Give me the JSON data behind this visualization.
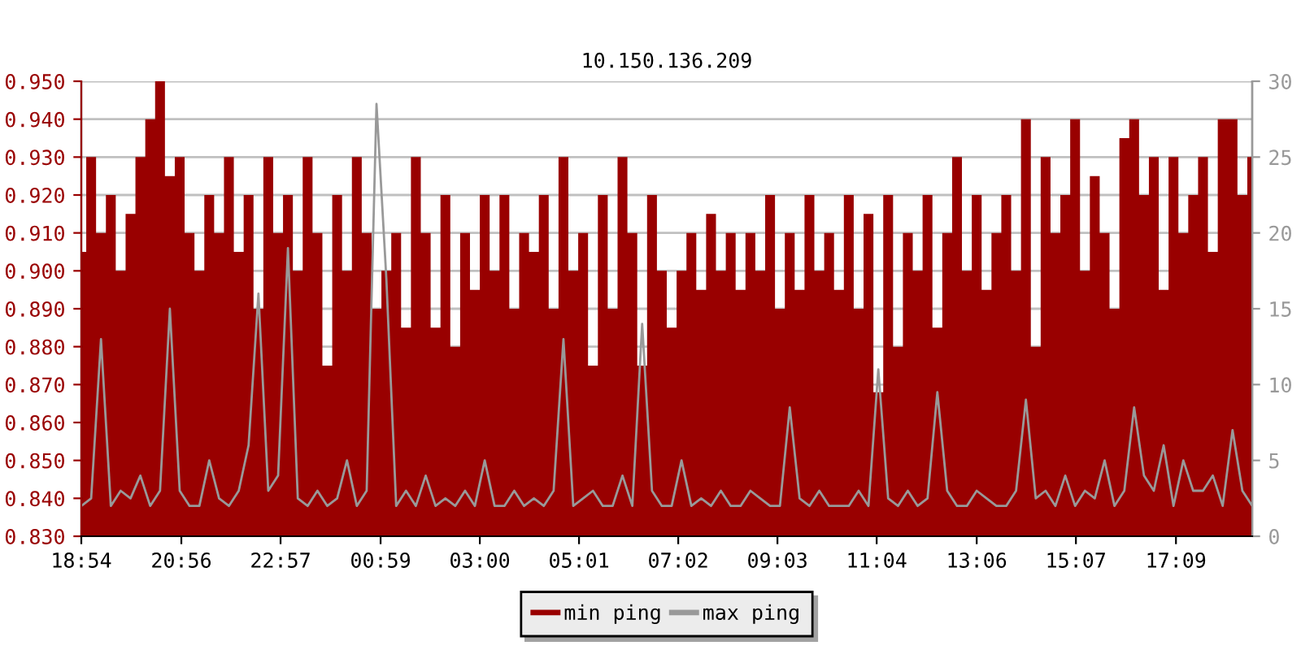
{
  "chart_data": {
    "type": "area",
    "title": "10.150.136.209",
    "xlim": [
      "2000-01-01T18:54",
      "2000-01-02T18:42"
    ],
    "xticks": [
      {
        "value": "2000-01-01T18:54",
        "label": "18:54"
      },
      {
        "value": "2000-01-01T20:56",
        "label": "20:56"
      },
      {
        "value": "2000-01-01T22:57",
        "label": "22:57"
      },
      {
        "value": "2000-01-02T00:59",
        "label": "00:59"
      },
      {
        "value": "2000-01-02T03:00",
        "label": "03:00"
      },
      {
        "value": "2000-01-02T05:01",
        "label": "05:01"
      },
      {
        "value": "2000-01-02T07:02",
        "label": "07:02"
      },
      {
        "value": "2000-01-02T09:03",
        "label": "09:03"
      },
      {
        "value": "2000-01-02T11:04",
        "label": "11:04"
      },
      {
        "value": "2000-01-02T13:06",
        "label": "13:06"
      },
      {
        "value": "2000-01-02T15:07",
        "label": "15:07"
      },
      {
        "value": "2000-01-02T17:09",
        "label": "17:09"
      }
    ],
    "ylim": [
      0.83,
      0.95
    ],
    "yticks": [
      {
        "value": 0.83,
        "label": "0.830"
      },
      {
        "value": 0.84,
        "label": "0.840"
      },
      {
        "value": 0.85,
        "label": "0.850"
      },
      {
        "value": 0.86,
        "label": "0.860"
      },
      {
        "value": 0.87,
        "label": "0.870"
      },
      {
        "value": 0.88,
        "label": "0.880"
      },
      {
        "value": 0.89,
        "label": "0.890"
      },
      {
        "value": 0.9,
        "label": "0.900"
      },
      {
        "value": 0.91,
        "label": "0.910"
      },
      {
        "value": 0.92,
        "label": "0.920"
      },
      {
        "value": 0.93,
        "label": "0.930"
      },
      {
        "value": 0.94,
        "label": "0.940"
      },
      {
        "value": 0.95,
        "label": "0.950"
      }
    ],
    "y2lim": [
      0,
      30
    ],
    "y2ticks": [
      0,
      5,
      10,
      15,
      20,
      25,
      30
    ],
    "grid": "y",
    "legend": "bottom",
    "x": [
      "2000-01-01T18:54",
      "2000-01-01T19:06",
      "2000-01-01T19:18",
      "2000-01-01T19:30",
      "2000-01-01T19:42",
      "2000-01-01T19:54",
      "2000-01-01T20:06",
      "2000-01-01T20:18",
      "2000-01-01T20:30",
      "2000-01-01T20:42",
      "2000-01-01T20:54",
      "2000-01-01T21:06",
      "2000-01-01T21:18",
      "2000-01-01T21:30",
      "2000-01-01T21:42",
      "2000-01-01T21:54",
      "2000-01-01T22:06",
      "2000-01-01T22:18",
      "2000-01-01T22:30",
      "2000-01-01T22:42",
      "2000-01-01T22:54",
      "2000-01-01T23:06",
      "2000-01-01T23:18",
      "2000-01-01T23:30",
      "2000-01-01T23:42",
      "2000-01-01T23:54",
      "2000-01-02T00:06",
      "2000-01-02T00:18",
      "2000-01-02T00:30",
      "2000-01-02T00:42",
      "2000-01-02T00:54",
      "2000-01-02T01:06",
      "2000-01-02T01:18",
      "2000-01-02T01:30",
      "2000-01-02T01:42",
      "2000-01-02T01:54",
      "2000-01-02T02:06",
      "2000-01-02T02:18",
      "2000-01-02T02:30",
      "2000-01-02T02:42",
      "2000-01-02T02:54",
      "2000-01-02T03:06",
      "2000-01-02T03:18",
      "2000-01-02T03:30",
      "2000-01-02T03:42",
      "2000-01-02T03:54",
      "2000-01-02T04:06",
      "2000-01-02T04:18",
      "2000-01-02T04:30",
      "2000-01-02T04:42",
      "2000-01-02T04:54",
      "2000-01-02T05:06",
      "2000-01-02T05:18",
      "2000-01-02T05:30",
      "2000-01-02T05:42",
      "2000-01-02T05:54",
      "2000-01-02T06:06",
      "2000-01-02T06:18",
      "2000-01-02T06:30",
      "2000-01-02T06:42",
      "2000-01-02T06:54",
      "2000-01-02T07:06",
      "2000-01-02T07:18",
      "2000-01-02T07:30",
      "2000-01-02T07:42",
      "2000-01-02T07:54",
      "2000-01-02T08:06",
      "2000-01-02T08:18",
      "2000-01-02T08:30",
      "2000-01-02T08:42",
      "2000-01-02T08:54",
      "2000-01-02T09:06",
      "2000-01-02T09:18",
      "2000-01-02T09:30",
      "2000-01-02T09:42",
      "2000-01-02T09:54",
      "2000-01-02T10:06",
      "2000-01-02T10:18",
      "2000-01-02T10:30",
      "2000-01-02T10:42",
      "2000-01-02T10:54",
      "2000-01-02T11:06",
      "2000-01-02T11:18",
      "2000-01-02T11:30",
      "2000-01-02T11:42",
      "2000-01-02T11:54",
      "2000-01-02T12:06",
      "2000-01-02T12:18",
      "2000-01-02T12:30",
      "2000-01-02T12:42",
      "2000-01-02T12:54",
      "2000-01-02T13:06",
      "2000-01-02T13:18",
      "2000-01-02T13:30",
      "2000-01-02T13:42",
      "2000-01-02T13:54",
      "2000-01-02T14:06",
      "2000-01-02T14:18",
      "2000-01-02T14:30",
      "2000-01-02T14:42",
      "2000-01-02T14:54",
      "2000-01-02T15:06",
      "2000-01-02T15:18",
      "2000-01-02T15:30",
      "2000-01-02T15:42",
      "2000-01-02T15:54",
      "2000-01-02T16:06",
      "2000-01-02T16:18",
      "2000-01-02T16:30",
      "2000-01-02T16:42",
      "2000-01-02T16:54",
      "2000-01-02T17:06",
      "2000-01-02T17:18",
      "2000-01-02T17:30",
      "2000-01-02T17:42",
      "2000-01-02T17:54",
      "2000-01-02T18:06",
      "2000-01-02T18:18",
      "2000-01-02T18:30",
      "2000-01-02T18:42"
    ],
    "series": [
      {
        "name": "min ping",
        "color": "#990000",
        "values": [
          0.905,
          0.93,
          0.91,
          0.92,
          0.9,
          0.915,
          0.93,
          0.94,
          0.95,
          0.925,
          0.93,
          0.91,
          0.9,
          0.92,
          0.91,
          0.93,
          0.905,
          0.92,
          0.89,
          0.93,
          0.91,
          0.92,
          0.9,
          0.93,
          0.91,
          0.875,
          0.92,
          0.9,
          0.93,
          0.91,
          0.89,
          0.9,
          0.91,
          0.885,
          0.93,
          0.91,
          0.885,
          0.92,
          0.88,
          0.91,
          0.895,
          0.92,
          0.9,
          0.92,
          0.89,
          0.91,
          0.905,
          0.92,
          0.89,
          0.93,
          0.9,
          0.91,
          0.875,
          0.92,
          0.89,
          0.93,
          0.91,
          0.875,
          0.92,
          0.9,
          0.885,
          0.9,
          0.91,
          0.895,
          0.915,
          0.9,
          0.91,
          0.895,
          0.91,
          0.9,
          0.92,
          0.89,
          0.91,
          0.895,
          0.92,
          0.9,
          0.91,
          0.895,
          0.92,
          0.89,
          0.915,
          0.868,
          0.92,
          0.88,
          0.91,
          0.9,
          0.92,
          0.885,
          0.91,
          0.93,
          0.9,
          0.92,
          0.895,
          0.91,
          0.92,
          0.9,
          0.94,
          0.88,
          0.93,
          0.91,
          0.92,
          0.94,
          0.9,
          0.925,
          0.91,
          0.89,
          0.935,
          0.94,
          0.92,
          0.93,
          0.895,
          0.93,
          0.91,
          0.92,
          0.93,
          0.905,
          0.94,
          0.94,
          0.92,
          0.93
        ]
      },
      {
        "name": "max ping",
        "type": "line",
        "axis": "y2",
        "color": "#999999",
        "values": [
          2,
          2.5,
          13,
          2,
          3,
          2.5,
          4,
          2,
          3,
          15,
          3,
          2,
          2,
          5,
          2.5,
          2,
          3,
          6,
          16,
          3,
          4,
          19,
          2.5,
          2,
          3,
          2,
          2.5,
          5,
          2,
          3,
          28.5,
          17,
          2,
          3,
          2,
          4,
          2,
          2.5,
          2,
          3,
          2,
          5,
          2,
          2,
          3,
          2,
          2.5,
          2,
          3,
          13,
          2,
          2.5,
          3,
          2,
          2,
          4,
          2,
          14,
          3,
          2,
          2,
          5,
          2,
          2.5,
          2,
          3,
          2,
          2,
          3,
          2.5,
          2,
          2,
          8.5,
          2.5,
          2,
          3,
          2,
          2,
          2,
          3,
          2,
          11,
          2.5,
          2,
          3,
          2,
          2.5,
          9.5,
          3,
          2,
          2,
          3,
          2.5,
          2,
          2,
          3,
          9,
          2.5,
          3,
          2,
          4,
          2,
          3,
          2.5,
          5,
          2,
          3,
          8.5,
          4,
          3,
          6,
          2,
          5,
          3,
          3,
          4,
          2,
          7,
          3,
          2
        ]
      }
    ]
  }
}
